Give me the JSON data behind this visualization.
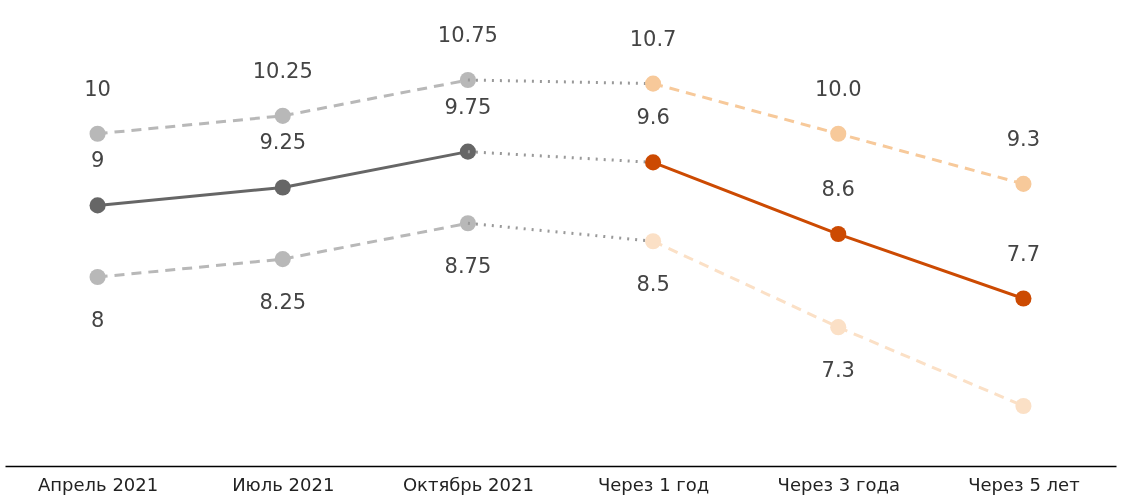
{
  "chart_data": {
    "type": "line",
    "categories": [
      "Апрель 2021",
      "Июль 2021",
      "Октябрь 2021",
      "Через 1 год",
      "Через 3 года",
      "Через 5 лет"
    ],
    "tick_labels": "x",
    "grid": false,
    "series": [
      {
        "color": "#b8b8b8",
        "line_style": "dashed",
        "marker": "circle",
        "values": [
          10,
          10.25,
          10.75,
          null,
          null,
          null
        ],
        "value_labels": [
          "10",
          "10.25",
          "10.75",
          null,
          null,
          null
        ]
      },
      {
        "color": "#666666",
        "line_style": "solid",
        "marker": "circle",
        "values": [
          9,
          9.25,
          9.75,
          null,
          null,
          null
        ],
        "value_labels": [
          "9",
          "9.25",
          "9.75",
          null,
          null,
          null
        ]
      },
      {
        "color": "#b8b8b8",
        "line_style": "dashed",
        "marker": "circle",
        "values": [
          8,
          8.25,
          8.75,
          null,
          null,
          null
        ],
        "value_labels": [
          "8",
          "8.25",
          "8.75",
          null,
          null,
          null
        ]
      },
      {
        "color": "#999999",
        "line_style": "dotted",
        "marker": "none",
        "values": [
          null,
          null,
          10.75,
          10.7,
          null,
          null
        ]
      },
      {
        "color": "#999999",
        "line_style": "dotted",
        "marker": "none",
        "values": [
          null,
          null,
          9.75,
          9.6,
          null,
          null
        ]
      },
      {
        "color": "#999999",
        "line_style": "dotted",
        "marker": "none",
        "values": [
          null,
          null,
          8.75,
          8.5,
          null,
          null
        ]
      },
      {
        "color": "#f7c99a",
        "line_style": "dashed",
        "marker": "circle",
        "values": [
          null,
          null,
          null,
          10.7,
          10.0,
          9.3
        ],
        "value_labels": [
          null,
          null,
          null,
          "10.7",
          "10.0",
          "9.3"
        ]
      },
      {
        "color": "#cc4a02",
        "line_style": "solid",
        "marker": "circle",
        "values": [
          null,
          null,
          null,
          9.6,
          8.6,
          7.7
        ],
        "value_labels": [
          null,
          null,
          null,
          "9.6",
          "8.6",
          "7.7"
        ]
      },
      {
        "color": "#fbe0c6",
        "line_style": "dashed",
        "marker": "circle",
        "values": [
          null,
          null,
          null,
          8.5,
          7.3,
          6.2
        ],
        "value_labels": [
          null,
          null,
          null,
          "8.5",
          "7.3",
          null
        ]
      }
    ]
  }
}
